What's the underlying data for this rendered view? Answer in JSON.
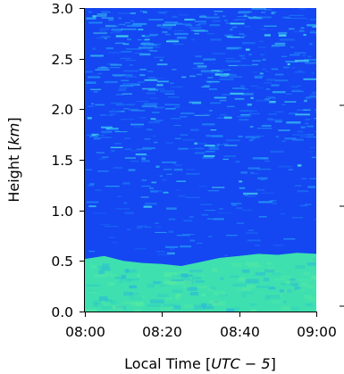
{
  "chart_data": {
    "type": "heatmap",
    "x_axis": {
      "label": "Local Time [UTC − 5]",
      "label_main": "Local Time [",
      "label_math": "UTC − 5",
      "label_end": "]",
      "range": [
        "08:00",
        "09:00"
      ],
      "ticks": [
        "08:00",
        "08:20",
        "08:40",
        "09:00"
      ]
    },
    "y_axis": {
      "label": "Height [km]",
      "label_main": "Height [",
      "label_math": "km",
      "label_end": "]",
      "range": [
        0.0,
        3.0
      ],
      "ticks": [
        "0.0",
        "0.5",
        "1.0",
        "1.5",
        "2.0",
        "2.5",
        "3.0"
      ],
      "tick_values": [
        0.0,
        0.5,
        1.0,
        1.5,
        2.0,
        2.5,
        3.0
      ]
    },
    "layers": [
      {
        "description": "boundary layer",
        "height_range_km": [
          0.0,
          0.55
        ],
        "color": "#3ee0b0"
      },
      {
        "description": "clear air above",
        "height_range_km": [
          0.55,
          3.0
        ],
        "color": "#1446f2"
      }
    ],
    "boundary_layer_top_km": [
      {
        "t": "08:00",
        "h": 0.52
      },
      {
        "t": "08:05",
        "h": 0.55
      },
      {
        "t": "08:10",
        "h": 0.5
      },
      {
        "t": "08:15",
        "h": 0.48
      },
      {
        "t": "08:20",
        "h": 0.47
      },
      {
        "t": "08:25",
        "h": 0.45
      },
      {
        "t": "08:30",
        "h": 0.49
      },
      {
        "t": "08:35",
        "h": 0.53
      },
      {
        "t": "08:40",
        "h": 0.55
      },
      {
        "t": "08:45",
        "h": 0.57
      },
      {
        "t": "08:50",
        "h": 0.56
      },
      {
        "t": "08:55",
        "h": 0.58
      },
      {
        "t": "09:00",
        "h": 0.57
      }
    ],
    "grid": false
  }
}
